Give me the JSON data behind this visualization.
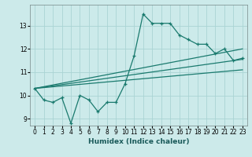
{
  "title": "",
  "xlabel": "Humidex (Indice chaleur)",
  "bg_color": "#cceaea",
  "grid_color": "#aad4d4",
  "line_color": "#1a7a6e",
  "x_data": [
    0,
    1,
    2,
    3,
    4,
    5,
    6,
    7,
    8,
    9,
    10,
    11,
    12,
    13,
    14,
    15,
    16,
    17,
    18,
    19,
    20,
    21,
    22,
    23
  ],
  "y_main": [
    10.3,
    9.8,
    9.7,
    9.9,
    8.8,
    10.0,
    9.8,
    9.3,
    9.7,
    9.7,
    10.5,
    11.7,
    13.5,
    13.1,
    13.1,
    13.1,
    12.6,
    12.4,
    12.2,
    12.2,
    11.8,
    12.0,
    11.5,
    11.6
  ],
  "xlim": [
    -0.5,
    23.5
  ],
  "ylim": [
    8.7,
    13.9
  ],
  "yticks": [
    9,
    10,
    11,
    12,
    13
  ],
  "xticks": [
    0,
    1,
    2,
    3,
    4,
    5,
    6,
    7,
    8,
    9,
    10,
    11,
    12,
    13,
    14,
    15,
    16,
    17,
    18,
    19,
    20,
    21,
    22,
    23
  ],
  "trend_lines": [
    [
      10.3,
      12.0
    ],
    [
      10.3,
      11.55
    ],
    [
      10.3,
      11.1
    ]
  ]
}
